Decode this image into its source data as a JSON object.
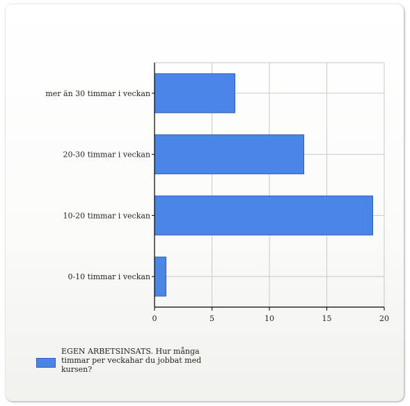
{
  "colors": {
    "bar_fill": "#4a86e8",
    "bar_stroke": "#2f5fb0",
    "grid": "#c8c8c8",
    "axis": "#000000",
    "text": "#222222"
  },
  "chart_data": {
    "type": "bar",
    "orientation": "horizontal",
    "categories": [
      "mer än 30 timmar i veckan",
      "20-30 timmar i veckan",
      "10-20 timmar i veckan",
      "0-10 timmar i veckan"
    ],
    "series": [
      {
        "name": "EGEN ARBETSINSATS. Hur många timmar per veckahar du jobbat med kursen?",
        "values": [
          7,
          13,
          19,
          1
        ]
      }
    ],
    "xlim": [
      0,
      20
    ],
    "xticks": [
      0,
      5,
      10,
      15,
      20
    ],
    "grid": true,
    "legend_position": "bottom-left"
  },
  "legend": {
    "label": "EGEN ARBETSINSATS. Hur många timmar per veckahar du jobbat med kursen?"
  }
}
